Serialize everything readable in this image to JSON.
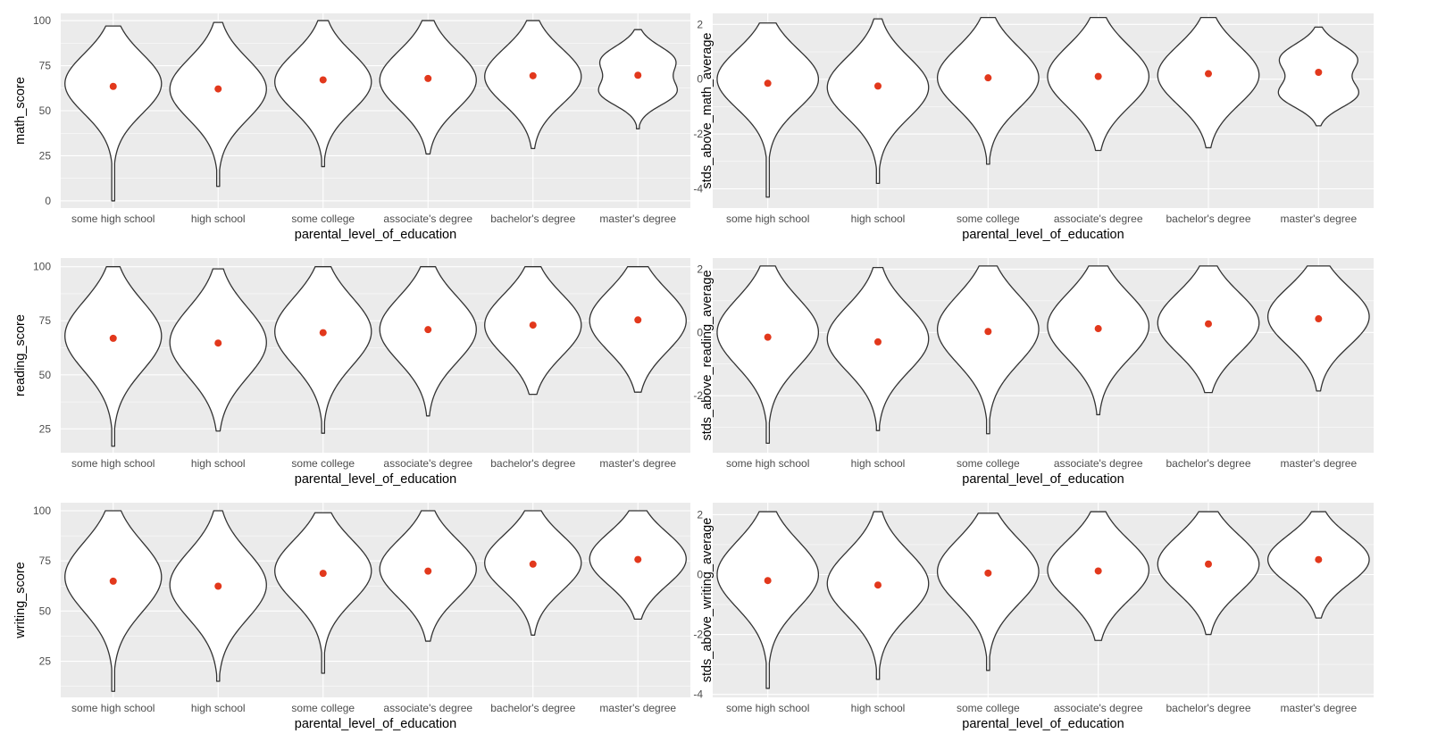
{
  "colors": {
    "panel_background": "#ebebeb",
    "gridline": "#ffffff",
    "violin_fill": "#ffffff",
    "violin_outline": "#333333",
    "mean_point": "#e2381c",
    "tick_text": "#4d4d4d",
    "axis_title": "#000000"
  },
  "chart_data": [
    {
      "type": "violin",
      "xlabel": "parental_level_of_education",
      "ylabel": "math_score",
      "categories": [
        "some high school",
        "high school",
        "some college",
        "associate's degree",
        "bachelor's degree",
        "master's degree"
      ],
      "ylim": [
        -4,
        104
      ],
      "yticks": [
        0,
        25,
        50,
        75,
        100
      ],
      "grid": true,
      "distributions": [
        {
          "min": 0,
          "max": 97,
          "bulge": 65,
          "lower_tail": 45,
          "upper_tail": 88
        },
        {
          "min": 8,
          "max": 99,
          "bulge": 62,
          "lower_tail": 44,
          "upper_tail": 88
        },
        {
          "min": 19,
          "max": 100,
          "bulge": 66,
          "lower_tail": 48,
          "upper_tail": 90
        },
        {
          "min": 26,
          "max": 100,
          "bulge": 67,
          "lower_tail": 48,
          "upper_tail": 90
        },
        {
          "min": 29,
          "max": 100,
          "bulge": 69,
          "lower_tail": 50,
          "upper_tail": 90
        },
        {
          "min": 40,
          "max": 95,
          "bulge": 78,
          "lower_tail": 58,
          "upper_tail": 92,
          "waist": 68
        }
      ],
      "means": [
        63.5,
        62.1,
        67.1,
        67.9,
        69.4,
        69.7
      ]
    },
    {
      "type": "violin",
      "xlabel": "parental_level_of_education",
      "ylabel": "stds_above_math_average",
      "categories": [
        "some high school",
        "high school",
        "some college",
        "associate's degree",
        "bachelor's degree",
        "master's degree"
      ],
      "ylim": [
        -4.7,
        2.4
      ],
      "yticks": [
        -4,
        -2,
        0,
        2
      ],
      "grid": true,
      "distributions": [
        {
          "min": -4.3,
          "max": 2.05,
          "bulge": 0.0,
          "lower_tail": -1.5,
          "upper_tail": 1.3
        },
        {
          "min": -3.8,
          "max": 2.2,
          "bulge": -0.3,
          "lower_tail": -1.5,
          "upper_tail": 1.4
        },
        {
          "min": -3.1,
          "max": 2.25,
          "bulge": 0.05,
          "lower_tail": -1.3,
          "upper_tail": 1.6
        },
        {
          "min": -2.6,
          "max": 2.25,
          "bulge": 0.1,
          "lower_tail": -1.3,
          "upper_tail": 1.6
        },
        {
          "min": -2.5,
          "max": 2.25,
          "bulge": 0.15,
          "lower_tail": -1.2,
          "upper_tail": 1.6
        },
        {
          "min": -1.7,
          "max": 1.9,
          "bulge": 0.75,
          "lower_tail": -0.7,
          "upper_tail": 1.6,
          "waist": 0.05
        }
      ],
      "means": [
        -0.15,
        -0.25,
        0.05,
        0.1,
        0.2,
        0.25
      ]
    },
    {
      "type": "violin",
      "xlabel": "parental_level_of_education",
      "ylabel": "reading_score",
      "categories": [
        "some high school",
        "high school",
        "some college",
        "associate's degree",
        "bachelor's degree",
        "master's degree"
      ],
      "ylim": [
        14,
        104
      ],
      "yticks": [
        25,
        50,
        75,
        100
      ],
      "grid": true,
      "distributions": [
        {
          "min": 17,
          "max": 100,
          "bulge": 68,
          "lower_tail": 48,
          "upper_tail": 90
        },
        {
          "min": 24,
          "max": 99,
          "bulge": 65,
          "lower_tail": 46,
          "upper_tail": 88
        },
        {
          "min": 23,
          "max": 100,
          "bulge": 70,
          "lower_tail": 50,
          "upper_tail": 91
        },
        {
          "min": 31,
          "max": 100,
          "bulge": 71,
          "lower_tail": 52,
          "upper_tail": 91
        },
        {
          "min": 41,
          "max": 100,
          "bulge": 73,
          "lower_tail": 55,
          "upper_tail": 92
        },
        {
          "min": 42,
          "max": 100,
          "bulge": 75,
          "lower_tail": 56,
          "upper_tail": 93
        }
      ],
      "means": [
        66.9,
        64.7,
        69.5,
        70.9,
        73.0,
        75.4
      ]
    },
    {
      "type": "violin",
      "xlabel": "parental_level_of_education",
      "ylabel": "stds_above_reading_average",
      "categories": [
        "some high school",
        "high school",
        "some college",
        "associate's degree",
        "bachelor's degree",
        "master's degree"
      ],
      "ylim": [
        -3.8,
        2.35
      ],
      "yticks": [
        -2,
        0,
        2
      ],
      "grid": true,
      "distributions": [
        {
          "min": -3.5,
          "max": 2.1,
          "bulge": 0.0,
          "lower_tail": -1.4,
          "upper_tail": 1.4
        },
        {
          "min": -3.1,
          "max": 2.05,
          "bulge": -0.2,
          "lower_tail": -1.4,
          "upper_tail": 1.3
        },
        {
          "min": -3.2,
          "max": 2.1,
          "bulge": 0.1,
          "lower_tail": -1.3,
          "upper_tail": 1.5
        },
        {
          "min": -2.6,
          "max": 2.1,
          "bulge": 0.2,
          "lower_tail": -1.2,
          "upper_tail": 1.5
        },
        {
          "min": -1.9,
          "max": 2.1,
          "bulge": 0.3,
          "lower_tail": -1.0,
          "upper_tail": 1.5
        },
        {
          "min": -1.85,
          "max": 2.1,
          "bulge": 0.5,
          "lower_tail": -0.9,
          "upper_tail": 1.5
        }
      ],
      "means": [
        -0.15,
        -0.3,
        0.03,
        0.12,
        0.27,
        0.43
      ]
    },
    {
      "type": "violin",
      "xlabel": "parental_level_of_education",
      "ylabel": "writing_score",
      "categories": [
        "some high school",
        "high school",
        "some college",
        "associate's degree",
        "bachelor's degree",
        "master's degree"
      ],
      "ylim": [
        7,
        104
      ],
      "yticks": [
        25,
        50,
        75,
        100
      ],
      "grid": true,
      "distributions": [
        {
          "min": 10,
          "max": 100,
          "bulge": 67,
          "lower_tail": 45,
          "upper_tail": 90
        },
        {
          "min": 15,
          "max": 100,
          "bulge": 63,
          "lower_tail": 44,
          "upper_tail": 88
        },
        {
          "min": 19,
          "max": 99,
          "bulge": 70,
          "lower_tail": 50,
          "upper_tail": 90
        },
        {
          "min": 35,
          "max": 100,
          "bulge": 71,
          "lower_tail": 53,
          "upper_tail": 91
        },
        {
          "min": 38,
          "max": 100,
          "bulge": 74,
          "lower_tail": 56,
          "upper_tail": 92
        },
        {
          "min": 46,
          "max": 100,
          "bulge": 76,
          "lower_tail": 59,
          "upper_tail": 93
        }
      ],
      "means": [
        64.9,
        62.4,
        68.8,
        69.9,
        73.4,
        75.7
      ]
    },
    {
      "type": "violin",
      "xlabel": "parental_level_of_education",
      "ylabel": "stds_above_writing_average",
      "categories": [
        "some high school",
        "high school",
        "some college",
        "associate's degree",
        "bachelor's degree",
        "master's degree"
      ],
      "ylim": [
        -4.1,
        2.4
      ],
      "yticks": [
        -4,
        -2,
        0,
        2
      ],
      "grid": true,
      "distributions": [
        {
          "min": -3.8,
          "max": 2.1,
          "bulge": 0.0,
          "lower_tail": -1.5,
          "upper_tail": 1.4
        },
        {
          "min": -3.5,
          "max": 2.1,
          "bulge": -0.3,
          "lower_tail": -1.5,
          "upper_tail": 1.3
        },
        {
          "min": -3.2,
          "max": 2.05,
          "bulge": 0.1,
          "lower_tail": -1.3,
          "upper_tail": 1.5
        },
        {
          "min": -2.2,
          "max": 2.1,
          "bulge": 0.15,
          "lower_tail": -1.1,
          "upper_tail": 1.5
        },
        {
          "min": -2.0,
          "max": 2.1,
          "bulge": 0.35,
          "lower_tail": -1.0,
          "upper_tail": 1.5
        },
        {
          "min": -1.45,
          "max": 2.1,
          "bulge": 0.5,
          "lower_tail": -0.6,
          "upper_tail": 1.5
        }
      ],
      "means": [
        -0.2,
        -0.35,
        0.05,
        0.12,
        0.35,
        0.5
      ]
    }
  ]
}
